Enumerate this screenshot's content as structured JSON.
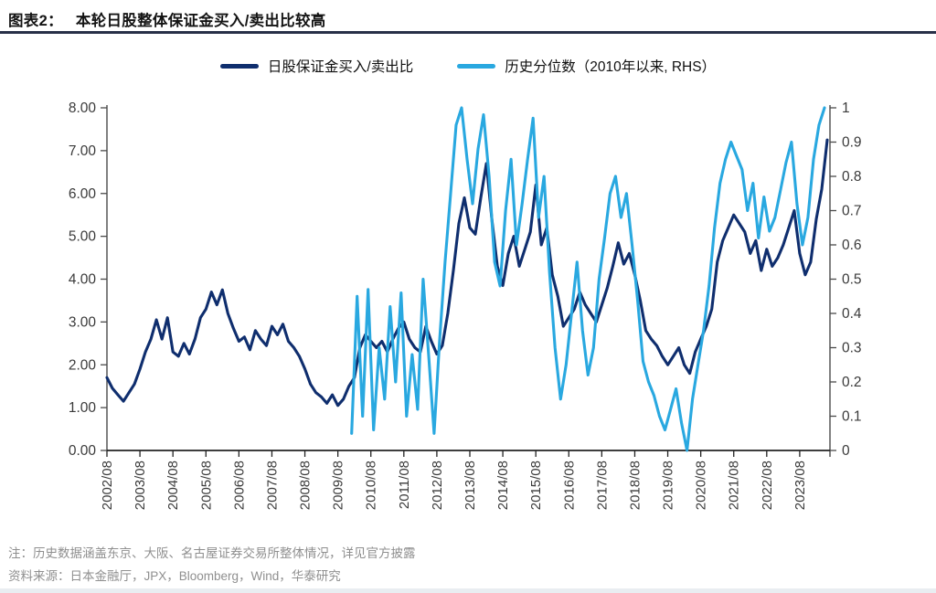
{
  "title": {
    "prefix": "图表2：",
    "text": "本轮日股整体保证金买入/卖出比较高"
  },
  "notes": {
    "line1": "注：历史数据涵盖东京、大阪、名古屋证券交易所整体情况，详见官方披露",
    "line2": "资料来源：日本金融厅，JPX，Bloomberg，Wind，华泰研究"
  },
  "colors": {
    "navy": "#0f2e6e",
    "cyan": "#29a8e0",
    "axis": "#4a4a4a",
    "axis_bottom": "#222222",
    "tick_text": "#3a3a3a",
    "title_rule": "#283048",
    "note_gray": "#8f8f8f"
  },
  "chart_data": {
    "type": "line",
    "title": "本轮日股整体保证金买入/卖出比较高",
    "legend_position": "top",
    "grid": false,
    "x_range_years": [
      2002.583,
      2024.5
    ],
    "x_ticks": [
      "2002/08",
      "2003/08",
      "2004/08",
      "2005/08",
      "2006/08",
      "2007/08",
      "2008/08",
      "2009/08",
      "2010/08",
      "2011/08",
      "2012/08",
      "2013/08",
      "2014/08",
      "2015/08",
      "2016/08",
      "2017/08",
      "2018/08",
      "2019/08",
      "2020/08",
      "2021/08",
      "2022/08",
      "2023/08"
    ],
    "left_axis": {
      "min": 0,
      "max": 8,
      "tick_labels": [
        "0.00",
        "1.00",
        "2.00",
        "3.00",
        "4.00",
        "5.00",
        "6.00",
        "7.00",
        "8.00"
      ]
    },
    "right_axis": {
      "min": 0,
      "max": 1,
      "tick_labels": [
        "0",
        "0.1",
        "0.2",
        "0.3",
        "0.4",
        "0.5",
        "0.6",
        "0.7",
        "0.8",
        "0.9",
        "1"
      ]
    },
    "series": [
      {
        "name": "日股保证金买入/卖出比",
        "axis": "left",
        "color_key": "navy",
        "start_year": 2002,
        "start_month": 8,
        "step_months": 2,
        "values": [
          1.7,
          1.45,
          1.3,
          1.15,
          1.35,
          1.55,
          1.9,
          2.3,
          2.6,
          3.05,
          2.6,
          3.1,
          2.3,
          2.2,
          2.5,
          2.25,
          2.6,
          3.1,
          3.3,
          3.7,
          3.4,
          3.75,
          3.2,
          2.85,
          2.55,
          2.65,
          2.35,
          2.8,
          2.6,
          2.45,
          2.9,
          2.7,
          2.95,
          2.55,
          2.4,
          2.2,
          1.9,
          1.55,
          1.35,
          1.25,
          1.1,
          1.3,
          1.05,
          1.2,
          1.5,
          1.7,
          2.4,
          2.7,
          2.55,
          2.4,
          2.55,
          2.3,
          2.6,
          2.85,
          3.0,
          2.6,
          2.4,
          2.3,
          2.9,
          2.55,
          2.25,
          2.45,
          3.2,
          4.2,
          5.3,
          5.9,
          5.2,
          5.05,
          5.9,
          6.7,
          5.4,
          4.3,
          3.85,
          4.6,
          5.0,
          4.3,
          4.7,
          5.1,
          6.2,
          4.8,
          5.2,
          4.1,
          3.6,
          2.9,
          3.1,
          3.3,
          3.7,
          3.4,
          3.2,
          3.0,
          3.4,
          3.8,
          4.3,
          4.85,
          4.35,
          4.6,
          4.1,
          3.5,
          2.8,
          2.6,
          2.45,
          2.2,
          2.0,
          2.2,
          2.4,
          2.0,
          1.8,
          2.3,
          2.6,
          2.9,
          3.3,
          4.4,
          4.9,
          5.2,
          5.5,
          5.3,
          5.1,
          4.6,
          4.9,
          4.2,
          4.7,
          4.3,
          4.5,
          4.8,
          5.2,
          5.6,
          4.6,
          4.1,
          4.4,
          5.4,
          6.1,
          7.25
        ]
      },
      {
        "name": "历史分位数（2010年以来, RHS）",
        "axis": "right",
        "color_key": "cyan",
        "start_year": 2010,
        "start_month": 1,
        "step_months": 2,
        "values": [
          0.05,
          0.45,
          0.1,
          0.47,
          0.06,
          0.3,
          0.15,
          0.42,
          0.2,
          0.46,
          0.1,
          0.28,
          0.12,
          0.5,
          0.28,
          0.05,
          0.32,
          0.55,
          0.75,
          0.95,
          1.0,
          0.85,
          0.72,
          0.88,
          0.98,
          0.8,
          0.55,
          0.48,
          0.7,
          0.85,
          0.6,
          0.72,
          0.85,
          0.97,
          0.68,
          0.8,
          0.52,
          0.3,
          0.15,
          0.25,
          0.4,
          0.55,
          0.35,
          0.22,
          0.3,
          0.5,
          0.62,
          0.75,
          0.8,
          0.68,
          0.75,
          0.6,
          0.44,
          0.26,
          0.2,
          0.16,
          0.1,
          0.06,
          0.12,
          0.18,
          0.08,
          0.0,
          0.15,
          0.25,
          0.35,
          0.48,
          0.65,
          0.78,
          0.85,
          0.9,
          0.86,
          0.82,
          0.7,
          0.78,
          0.62,
          0.74,
          0.64,
          0.68,
          0.76,
          0.84,
          0.9,
          0.72,
          0.6,
          0.68,
          0.85,
          0.95,
          1.0
        ]
      }
    ]
  }
}
